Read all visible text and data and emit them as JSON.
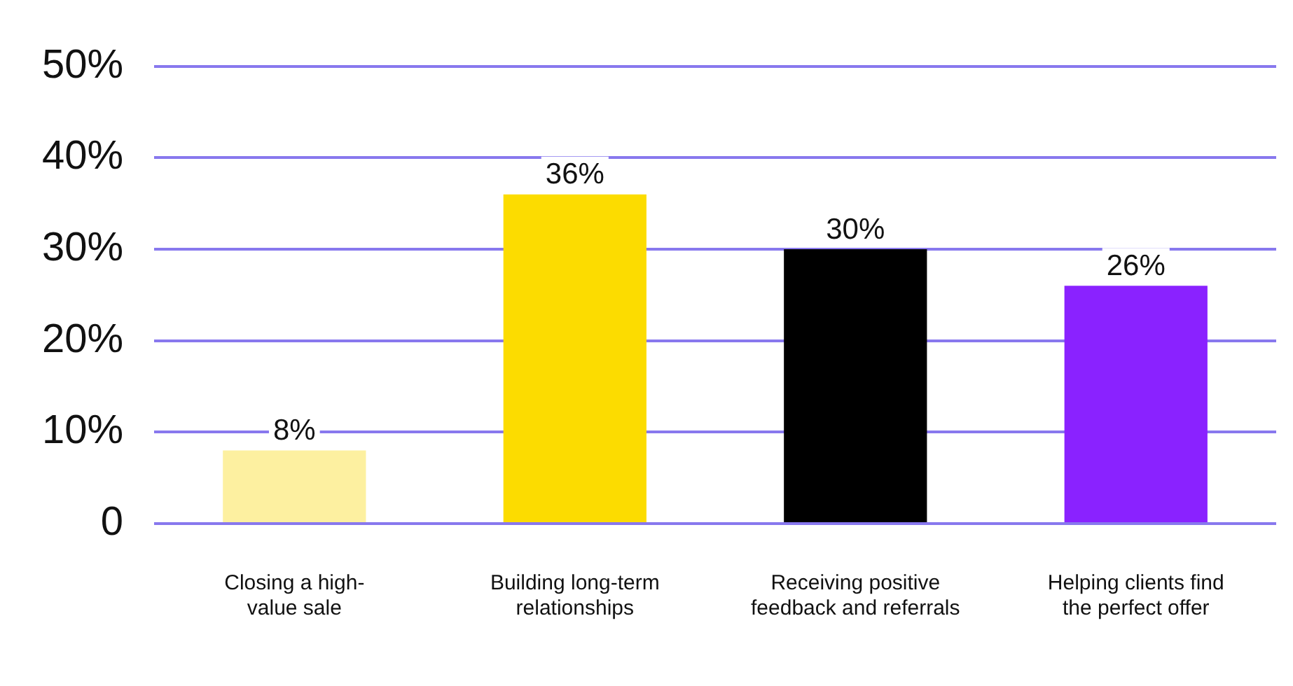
{
  "chart_data": {
    "type": "bar",
    "categories": [
      "Closing a high-value sale",
      "Building long-term relationships",
      "Receiving positive feedback and referrals",
      "Helping clients find the perfect offer"
    ],
    "values": [
      8,
      36,
      30,
      26
    ],
    "colors": [
      "#fdf0a0",
      "#fcdc00",
      "#000000",
      "#8a22ff"
    ],
    "ylim": [
      0,
      50
    ],
    "yticks": [
      0,
      {
        "value": 10,
        "label": "10%"
      },
      {
        "value": 20,
        "label": "20%"
      },
      {
        "value": 30,
        "label": "30%"
      },
      {
        "value": 40,
        "label": "40%"
      },
      {
        "value": 50,
        "label": "50%"
      }
    ],
    "value_labels": [
      "8%",
      "36%",
      "30%",
      "26%"
    ],
    "grid": "y"
  }
}
